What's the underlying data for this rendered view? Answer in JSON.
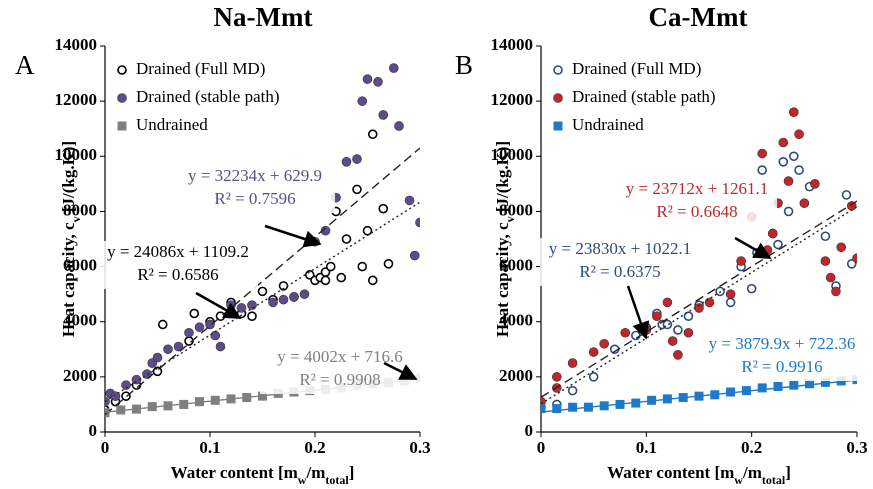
{
  "chart_data": [
    {
      "type": "scatter",
      "title": "Na-Mmt",
      "panel": "A",
      "xlabel": [
        {
          "t": "Water content [m"
        },
        {
          "t": "w",
          "sub": true
        },
        {
          "t": "/m"
        },
        {
          "t": "total",
          "sub": true
        },
        {
          "t": "]"
        }
      ],
      "ylabel": [
        {
          "t": "Heat capacity, c"
        },
        {
          "t": "v",
          "sub": true
        },
        {
          "t": " [J/(kg.K)]"
        }
      ],
      "xlim": [
        0,
        0.3
      ],
      "ylim": [
        0,
        14000
      ],
      "xticks": [
        0,
        0.1,
        0.2,
        0.3
      ],
      "yticks": [
        0,
        2000,
        4000,
        6000,
        8000,
        10000,
        12000,
        14000
      ],
      "series": [
        {
          "name": "Drained (Full MD)",
          "color": "#000000",
          "marker": "circle-open",
          "x": [
            0,
            0.01,
            0.02,
            0.03,
            0.05,
            0.055,
            0.08,
            0.085,
            0.1,
            0.11,
            0.12,
            0.13,
            0.14,
            0.15,
            0.16,
            0.17,
            0.18,
            0.195,
            0.2,
            0.205,
            0.21,
            0.215,
            0.22,
            0.225,
            0.23,
            0.24,
            0.245,
            0.25,
            0.255,
            0.255,
            0.265,
            0.27,
            0.21
          ],
          "values": [
            800,
            1100,
            1300,
            1700,
            2200,
            3900,
            3300,
            4300,
            4000,
            4200,
            4700,
            4300,
            4200,
            5100,
            4800,
            5300,
            4900,
            5700,
            5500,
            5600,
            5800,
            6000,
            8000,
            5600,
            7000,
            8800,
            6000,
            7300,
            10800,
            5500,
            8100,
            6100,
            5500
          ],
          "trend": {
            "equation": "y = 24086x + 1109.2",
            "r2": "R² = 0.6586",
            "slope": 24086,
            "intercept": 1109.2,
            "dash": "dotted"
          }
        },
        {
          "name": "Drained (stable path)",
          "color": "#5e4b8b",
          "marker": "circle",
          "x": [
            0,
            0.005,
            0.01,
            0.02,
            0.03,
            0.04,
            0.045,
            0.05,
            0.06,
            0.07,
            0.08,
            0.09,
            0.1,
            0.105,
            0.11,
            0.12,
            0.13,
            0.14,
            0.16,
            0.17,
            0.18,
            0.19,
            0.2,
            0.21,
            0.22,
            0.23,
            0.24,
            0.245,
            0.25,
            0.26,
            0.265,
            0.275,
            0.28,
            0.29,
            0.295,
            0.3
          ],
          "values": [
            1100,
            1400,
            1300,
            1700,
            1900,
            2100,
            2500,
            2700,
            3000,
            3100,
            3600,
            3800,
            3900,
            3500,
            3100,
            4600,
            4500,
            4600,
            4700,
            4800,
            4900,
            5000,
            6900,
            7300,
            8500,
            9800,
            9900,
            12000,
            12800,
            12700,
            11500,
            13200,
            11100,
            8400,
            6400,
            7600
          ],
          "trend": {
            "equation": "y = 32234x + 629.9",
            "r2": "R² = 0.7596",
            "slope": 32234,
            "intercept": 629.9,
            "dash": "dashed"
          }
        },
        {
          "name": "Undrained",
          "color": "#7f7f7f",
          "marker": "square",
          "x": [
            0,
            0.015,
            0.03,
            0.045,
            0.06,
            0.075,
            0.09,
            0.105,
            0.12,
            0.135,
            0.15,
            0.165,
            0.18,
            0.195,
            0.21,
            0.225,
            0.24,
            0.255,
            0.27,
            0.285,
            0.3
          ],
          "values": [
            700,
            800,
            830,
            920,
            950,
            1000,
            1100,
            1150,
            1200,
            1250,
            1300,
            1400,
            1450,
            1500,
            1550,
            1600,
            1700,
            1750,
            1800,
            1850,
            1950
          ],
          "trend": {
            "equation": "y = 4002x + 716.6",
            "r2": "R² = 0.9908",
            "slope": 4002,
            "intercept": 716.6,
            "dash": "solid"
          }
        }
      ]
    },
    {
      "type": "scatter",
      "title": "Ca-Mmt",
      "panel": "B",
      "xlabel": [
        {
          "t": "Water content [m"
        },
        {
          "t": "w",
          "sub": true
        },
        {
          "t": "/m"
        },
        {
          "t": "total",
          "sub": true
        },
        {
          "t": "]"
        }
      ],
      "ylabel": [
        {
          "t": "Heat capacity, c"
        },
        {
          "t": "v",
          "sub": true
        },
        {
          "t": " [J/(kg.K)]"
        }
      ],
      "xlim": [
        0,
        0.3
      ],
      "ylim": [
        0,
        14000
      ],
      "xticks": [
        0,
        0.1,
        0.2,
        0.3
      ],
      "yticks": [
        0,
        2000,
        4000,
        6000,
        8000,
        10000,
        12000,
        14000
      ],
      "series": [
        {
          "name": "Drained (Full MD)",
          "color": "#2e4a7a",
          "marker": "circle-open",
          "x": [
            0,
            0.015,
            0.03,
            0.05,
            0.07,
            0.09,
            0.1,
            0.11,
            0.115,
            0.12,
            0.13,
            0.14,
            0.15,
            0.17,
            0.18,
            0.19,
            0.2,
            0.205,
            0.21,
            0.22,
            0.225,
            0.23,
            0.235,
            0.24,
            0.245,
            0.255,
            0.27,
            0.28,
            0.29,
            0.295
          ],
          "values": [
            900,
            1000,
            1500,
            2000,
            3000,
            3500,
            3800,
            4300,
            3900,
            3900,
            3700,
            4200,
            4600,
            5100,
            4700,
            6000,
            5200,
            6500,
            9500,
            7200,
            6800,
            9800,
            8000,
            10000,
            9500,
            8900,
            7100,
            5300,
            8600,
            6100
          ],
          "trend": {
            "equation": "y = 23830x + 1022.1",
            "r2": "R² = 0.6375",
            "slope": 23830,
            "intercept": 1022.1,
            "dash": "dotted"
          }
        },
        {
          "name": "Drained (stable path)",
          "color": "#c0272d",
          "marker": "circle",
          "x": [
            0,
            0.015,
            0.015,
            0.03,
            0.05,
            0.06,
            0.08,
            0.1,
            0.11,
            0.12,
            0.125,
            0.13,
            0.14,
            0.15,
            0.16,
            0.18,
            0.19,
            0.2,
            0.21,
            0.215,
            0.22,
            0.225,
            0.23,
            0.235,
            0.24,
            0.245,
            0.25,
            0.26,
            0.27,
            0.275,
            0.28,
            0.285,
            0.295,
            0.3
          ],
          "values": [
            1100,
            1600,
            2000,
            2500,
            2900,
            3200,
            3600,
            3700,
            4200,
            4700,
            3300,
            2800,
            3600,
            4500,
            4700,
            5000,
            6200,
            7800,
            10100,
            6600,
            7200,
            8300,
            10500,
            9100,
            11600,
            10800,
            8300,
            9000,
            6200,
            5600,
            5100,
            6700,
            8200,
            6300
          ],
          "trend": {
            "equation": "y = 23712x + 1261.1",
            "r2": "R² = 0.6648",
            "slope": 23712,
            "intercept": 1261.1,
            "dash": "dashed"
          }
        },
        {
          "name": "Undrained",
          "color": "#1f78c8",
          "marker": "square",
          "x": [
            0,
            0.015,
            0.03,
            0.045,
            0.06,
            0.075,
            0.09,
            0.105,
            0.12,
            0.135,
            0.15,
            0.165,
            0.18,
            0.195,
            0.21,
            0.225,
            0.24,
            0.255,
            0.27,
            0.285,
            0.3
          ],
          "values": [
            850,
            850,
            900,
            900,
            950,
            1000,
            1050,
            1150,
            1200,
            1250,
            1300,
            1350,
            1450,
            1500,
            1600,
            1650,
            1700,
            1750,
            1800,
            1850,
            1900
          ],
          "trend": {
            "equation": "y = 3879.9x + 722.36",
            "r2": "R² = 0.9916",
            "slope": 3879.9,
            "intercept": 722.36,
            "dash": "solid"
          }
        }
      ]
    }
  ]
}
